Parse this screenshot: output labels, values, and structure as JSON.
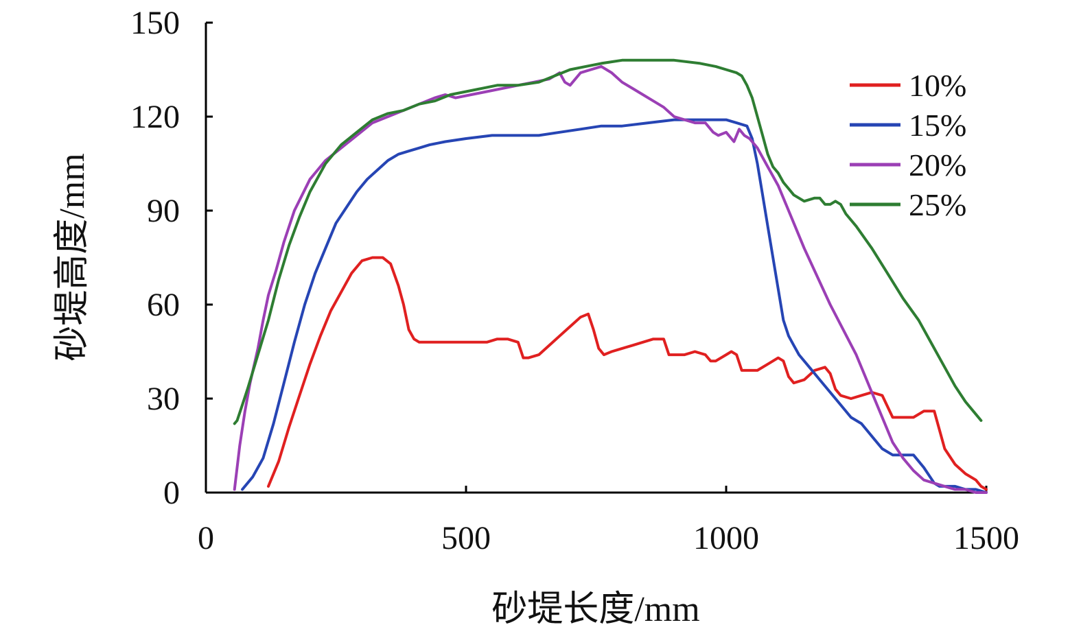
{
  "chart_data": {
    "type": "line",
    "title": "",
    "xlabel": "砂堤长度/mm",
    "ylabel": "砂堤高度/mm",
    "xlim": [
      0,
      1500
    ],
    "ylim": [
      0,
      150
    ],
    "xticks": [
      0,
      500,
      1000,
      1500
    ],
    "yticks": [
      0,
      30,
      60,
      90,
      120,
      150
    ],
    "grid": false,
    "legend_position": "right",
    "series": [
      {
        "name": "10%",
        "color": "#e02020",
        "x": [
          120,
          140,
          160,
          180,
          200,
          220,
          240,
          260,
          280,
          300,
          320,
          340,
          355,
          370,
          380,
          390,
          400,
          410,
          420,
          440,
          460,
          480,
          500,
          520,
          540,
          560,
          580,
          600,
          610,
          620,
          640,
          660,
          680,
          700,
          720,
          735,
          745,
          755,
          765,
          780,
          800,
          820,
          840,
          860,
          880,
          890,
          900,
          920,
          940,
          960,
          970,
          980,
          1000,
          1010,
          1020,
          1030,
          1040,
          1060,
          1080,
          1100,
          1110,
          1120,
          1130,
          1150,
          1170,
          1190,
          1200,
          1210,
          1220,
          1240,
          1260,
          1280,
          1300,
          1320,
          1340,
          1360,
          1380,
          1400,
          1410,
          1420,
          1440,
          1460,
          1480,
          1490,
          1500
        ],
        "values": [
          2,
          10,
          21,
          31,
          41,
          50,
          58,
          64,
          70,
          74,
          75,
          75,
          73,
          66,
          60,
          52,
          49,
          48,
          48,
          48,
          48,
          48,
          48,
          48,
          48,
          49,
          49,
          48,
          43,
          43,
          44,
          47,
          50,
          53,
          56,
          57,
          52,
          46,
          44,
          45,
          46,
          47,
          48,
          49,
          49,
          44,
          44,
          44,
          45,
          44,
          42,
          42,
          44,
          45,
          44,
          39,
          39,
          39,
          41,
          43,
          42,
          37,
          35,
          36,
          39,
          40,
          38,
          33,
          31,
          30,
          31,
          32,
          31,
          24,
          24,
          24,
          26,
          26,
          20,
          14,
          9,
          6,
          4,
          2,
          1
        ]
      },
      {
        "name": "15%",
        "color": "#2645b4",
        "x": [
          70,
          90,
          110,
          130,
          150,
          170,
          190,
          210,
          230,
          250,
          270,
          290,
          310,
          330,
          350,
          370,
          390,
          410,
          430,
          460,
          500,
          550,
          600,
          640,
          680,
          720,
          760,
          800,
          850,
          900,
          950,
          980,
          1000,
          1020,
          1040,
          1050,
          1060,
          1070,
          1080,
          1090,
          1100,
          1110,
          1120,
          1130,
          1140,
          1160,
          1180,
          1200,
          1220,
          1240,
          1260,
          1280,
          1300,
          1320,
          1340,
          1360,
          1380,
          1400,
          1410,
          1420,
          1440,
          1460,
          1480,
          1500
        ],
        "values": [
          1,
          5,
          11,
          22,
          35,
          48,
          60,
          70,
          78,
          86,
          91,
          96,
          100,
          103,
          106,
          108,
          109,
          110,
          111,
          112,
          113,
          114,
          114,
          114,
          115,
          116,
          117,
          117,
          118,
          119,
          119,
          119,
          119,
          118,
          117,
          113,
          105,
          95,
          85,
          75,
          65,
          55,
          50,
          47,
          44,
          40,
          36,
          32,
          28,
          24,
          22,
          18,
          14,
          12,
          12,
          12,
          8,
          3,
          2,
          2,
          2,
          1,
          1,
          0
        ]
      },
      {
        "name": "20%",
        "color": "#9b3fb5",
        "x": [
          55,
          65,
          75,
          85,
          100,
          110,
          120,
          135,
          150,
          170,
          200,
          230,
          260,
          290,
          320,
          350,
          380,
          410,
          440,
          460,
          480,
          510,
          540,
          570,
          600,
          630,
          660,
          680,
          690,
          700,
          720,
          740,
          760,
          780,
          800,
          820,
          840,
          860,
          880,
          900,
          920,
          940,
          960,
          975,
          985,
          1000,
          1015,
          1025,
          1035,
          1045,
          1060,
          1080,
          1100,
          1120,
          1150,
          1200,
          1250,
          1280,
          1300,
          1320,
          1340,
          1360,
          1380,
          1400,
          1420,
          1440,
          1460,
          1480,
          1500
        ],
        "values": [
          1,
          15,
          26,
          35,
          46,
          55,
          63,
          71,
          80,
          90,
          100,
          106,
          110,
          114,
          118,
          120,
          122,
          124,
          126,
          127,
          126,
          127,
          128,
          129,
          130,
          131,
          132,
          134,
          131,
          130,
          134,
          135,
          136,
          134,
          131,
          129,
          127,
          125,
          123,
          120,
          119,
          118,
          118,
          115,
          114,
          115,
          112,
          116,
          114,
          113,
          110,
          104,
          98,
          90,
          78,
          60,
          44,
          32,
          24,
          16,
          11,
          7,
          4,
          3,
          2,
          1,
          1,
          0,
          0
        ]
      },
      {
        "name": "25%",
        "color": "#2e7d32",
        "x": [
          55,
          60,
          70,
          80,
          100,
          120,
          140,
          160,
          180,
          200,
          230,
          260,
          290,
          320,
          350,
          380,
          410,
          440,
          470,
          500,
          530,
          560,
          600,
          640,
          670,
          700,
          730,
          760,
          800,
          850,
          900,
          950,
          980,
          1000,
          1020,
          1030,
          1040,
          1050,
          1060,
          1070,
          1080,
          1090,
          1100,
          1110,
          1120,
          1130,
          1150,
          1170,
          1180,
          1190,
          1200,
          1210,
          1220,
          1230,
          1250,
          1280,
          1310,
          1340,
          1370,
          1400,
          1420,
          1440,
          1460,
          1480,
          1490
        ],
        "values": [
          22,
          23,
          28,
          33,
          44,
          55,
          68,
          79,
          88,
          96,
          105,
          111,
          115,
          119,
          121,
          122,
          124,
          125,
          127,
          128,
          129,
          130,
          130,
          131,
          133,
          135,
          136,
          137,
          138,
          138,
          138,
          137,
          136,
          135,
          134,
          133,
          130,
          126,
          120,
          114,
          108,
          104,
          102,
          99,
          97,
          95,
          93,
          94,
          94,
          92,
          92,
          93,
          92,
          89,
          85,
          78,
          70,
          62,
          55,
          46,
          40,
          34,
          29,
          25,
          23
        ]
      }
    ]
  }
}
